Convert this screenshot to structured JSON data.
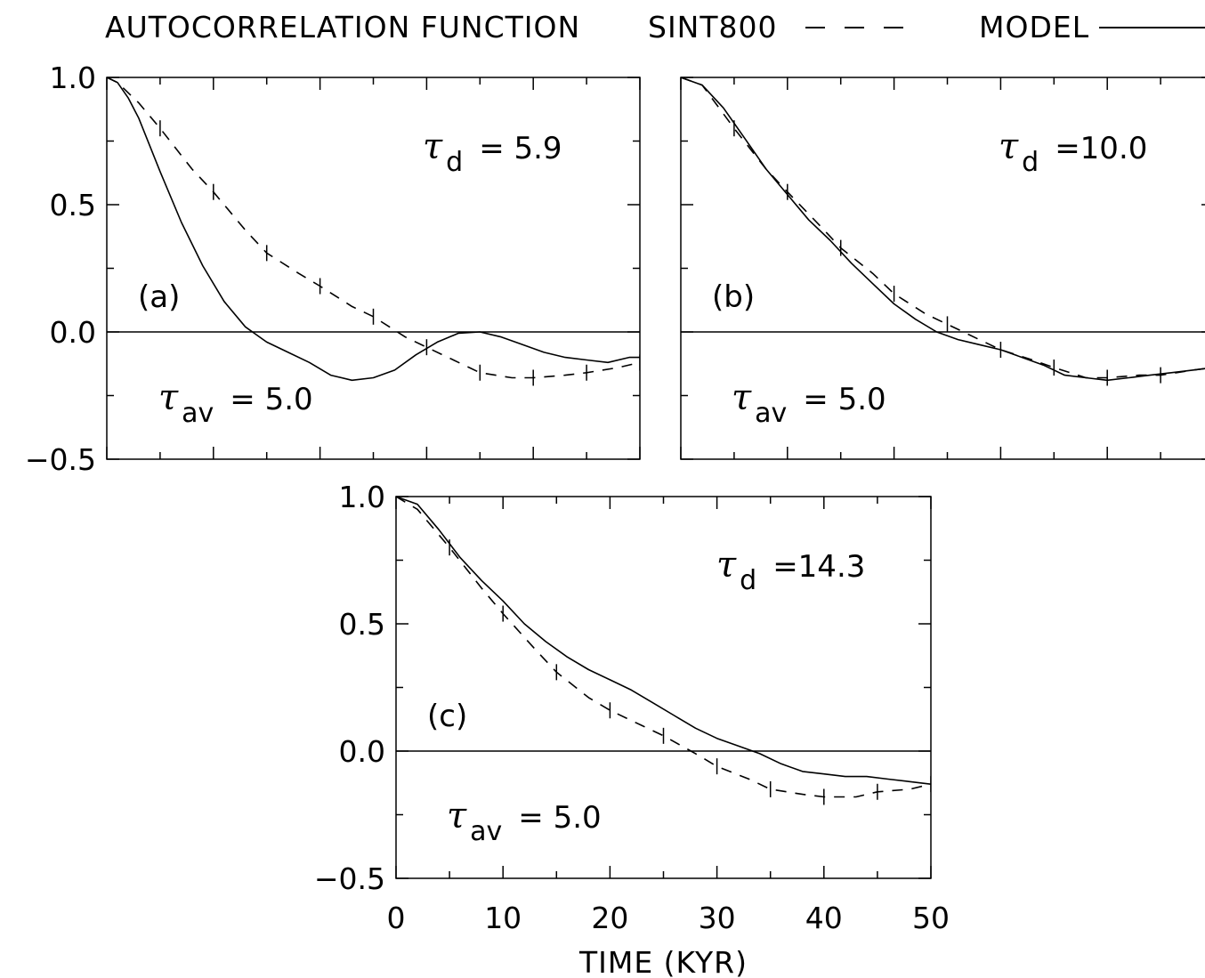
{
  "chart_data": [
    {
      "type": "line",
      "title": "AUTOCORRELATION FUNCTION",
      "panel_label": "(a)",
      "tau_d": "5.9",
      "tau_av": "5.0",
      "xlim": [
        0,
        50
      ],
      "ylim": [
        -0.5,
        1.0
      ],
      "yticks": [
        "1.0",
        "0.5",
        "0.0",
        "-0.5"
      ],
      "series": [
        {
          "name": "SINT800",
          "style": "dashed",
          "x": [
            0,
            1,
            3,
            5,
            8,
            10,
            13,
            15,
            18,
            20,
            23,
            25,
            28,
            30,
            33,
            35,
            38,
            40,
            43,
            45,
            48,
            50
          ],
          "y": [
            1.0,
            0.98,
            0.9,
            0.8,
            0.64,
            0.55,
            0.4,
            0.31,
            0.23,
            0.18,
            0.1,
            0.06,
            -0.02,
            -0.06,
            -0.12,
            -0.16,
            -0.18,
            -0.18,
            -0.17,
            -0.16,
            -0.14,
            -0.12
          ]
        },
        {
          "name": "MODEL",
          "style": "solid",
          "x": [
            0,
            1,
            2,
            3,
            5,
            7,
            9,
            11,
            13,
            14,
            15,
            17,
            19,
            21,
            23,
            25,
            27,
            29,
            31,
            33,
            35,
            37,
            39,
            41,
            43,
            45,
            47,
            49,
            50
          ],
          "y": [
            1.0,
            0.98,
            0.92,
            0.84,
            0.63,
            0.43,
            0.26,
            0.12,
            0.02,
            -0.01,
            -0.04,
            -0.08,
            -0.12,
            -0.17,
            -0.19,
            -0.18,
            -0.15,
            -0.09,
            -0.04,
            -0.005,
            0.0,
            -0.02,
            -0.05,
            -0.08,
            -0.1,
            -0.11,
            -0.12,
            -0.1,
            -0.1
          ]
        }
      ]
    },
    {
      "type": "line",
      "panel_label": "(b)",
      "tau_d": "=10.0",
      "tau_av": "5.0",
      "xlim": [
        0,
        50
      ],
      "ylim": [
        -0.5,
        1.0
      ],
      "series": [
        {
          "name": "SINT800",
          "style": "dashed",
          "x": [
            0,
            2,
            5,
            8,
            10,
            13,
            15,
            18,
            20,
            23,
            25,
            28,
            30,
            33,
            35,
            38,
            40,
            43,
            45,
            48,
            50
          ],
          "y": [
            1.0,
            0.97,
            0.8,
            0.64,
            0.55,
            0.42,
            0.33,
            0.23,
            0.15,
            0.07,
            0.03,
            -0.03,
            -0.07,
            -0.11,
            -0.14,
            -0.18,
            -0.18,
            -0.17,
            -0.17,
            -0.15,
            -0.14
          ]
        },
        {
          "name": "MODEL",
          "style": "solid",
          "x": [
            0,
            2,
            4,
            6,
            8,
            10,
            12,
            14,
            16,
            18,
            20,
            22,
            24,
            26,
            28,
            30,
            32,
            34,
            36,
            38,
            40,
            42,
            44,
            46,
            48,
            50
          ],
          "y": [
            1.0,
            0.97,
            0.88,
            0.76,
            0.64,
            0.54,
            0.44,
            0.36,
            0.27,
            0.19,
            0.11,
            0.05,
            0.0,
            -0.03,
            -0.05,
            -0.07,
            -0.1,
            -0.13,
            -0.17,
            -0.18,
            -0.19,
            -0.18,
            -0.17,
            -0.16,
            -0.15,
            -0.14
          ]
        }
      ]
    },
    {
      "type": "line",
      "panel_label": "(c)",
      "tau_d": "=14.3",
      "tau_av": "5.0",
      "xlabel": "TIME (KYR)",
      "xlim": [
        0,
        50
      ],
      "ylim": [
        -0.5,
        1.0
      ],
      "xticks": [
        "0",
        "10",
        "20",
        "30",
        "40",
        "50"
      ],
      "yticks": [
        "1.0",
        "0.5",
        "0.0",
        "-0.5"
      ],
      "series": [
        {
          "name": "SINT800",
          "style": "dashed",
          "x": [
            0,
            2,
            5,
            8,
            10,
            13,
            15,
            18,
            20,
            23,
            25,
            28,
            30,
            33,
            35,
            38,
            40,
            43,
            45,
            48,
            50
          ],
          "y": [
            1.0,
            0.95,
            0.8,
            0.64,
            0.54,
            0.4,
            0.31,
            0.21,
            0.16,
            0.1,
            0.06,
            -0.01,
            -0.06,
            -0.11,
            -0.15,
            -0.17,
            -0.18,
            -0.18,
            -0.16,
            -0.15,
            -0.13
          ]
        },
        {
          "name": "MODEL",
          "style": "solid",
          "x": [
            0,
            2,
            4,
            6,
            8,
            10,
            12,
            14,
            16,
            18,
            20,
            22,
            24,
            26,
            28,
            30,
            32,
            34,
            36,
            38,
            40,
            42,
            44,
            46,
            48,
            50
          ],
          "y": [
            1.0,
            0.97,
            0.87,
            0.76,
            0.67,
            0.59,
            0.5,
            0.43,
            0.37,
            0.32,
            0.28,
            0.24,
            0.19,
            0.14,
            0.09,
            0.05,
            0.02,
            -0.01,
            -0.05,
            -0.08,
            -0.09,
            -0.1,
            -0.1,
            -0.11,
            -0.12,
            -0.13
          ]
        }
      ]
    }
  ],
  "legend": {
    "entries": [
      {
        "name": "SINT800",
        "style": "dashed"
      },
      {
        "name": "MODEL",
        "style": "solid"
      }
    ]
  },
  "colors": {
    "ink": "#000000",
    "background": "#ffffff"
  }
}
